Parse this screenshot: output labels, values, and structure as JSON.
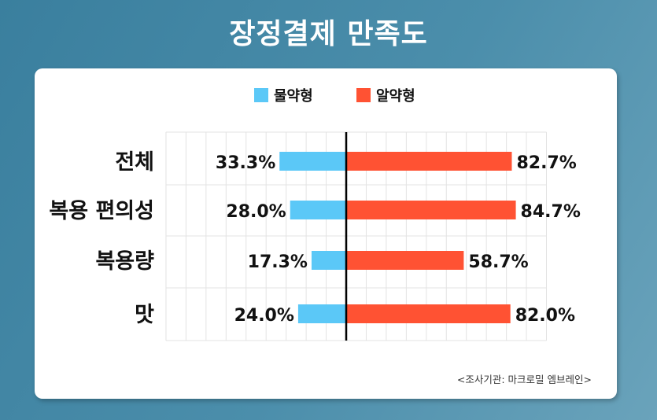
{
  "chart_data": {
    "type": "bar",
    "orientation": "horizontal-diverging",
    "title": "장정결제 만족도",
    "categories": [
      "전체",
      "복용 편의성",
      "복용량",
      "맛"
    ],
    "series": [
      {
        "name": "물약형",
        "color": "#5bc8f7",
        "side": "left",
        "values": [
          33.3,
          28.0,
          17.3,
          24.0
        ]
      },
      {
        "name": "알약형",
        "color": "#ff5233",
        "side": "right",
        "values": [
          82.7,
          84.7,
          58.7,
          82.0
        ]
      }
    ],
    "value_format": "%",
    "xlim": [
      -90,
      100
    ],
    "grid": true,
    "legend": "top-center",
    "source": "<조사기관: 마크로밀 엠브레인>"
  }
}
